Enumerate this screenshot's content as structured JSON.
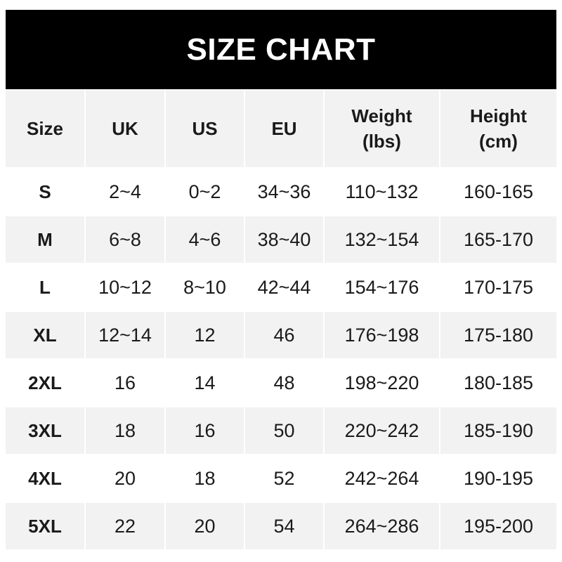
{
  "title": "SIZE CHART",
  "headers": [
    "Size",
    "UK",
    "US",
    "EU",
    "Weight\n(lbs)",
    "Height\n(cm)"
  ],
  "rows": [
    [
      "S",
      "2~4",
      "0~2",
      "34~36",
      "110~132",
      "160-165"
    ],
    [
      "M",
      "6~8",
      "4~6",
      "38~40",
      "132~154",
      "165-170"
    ],
    [
      "L",
      "10~12",
      "8~10",
      "42~44",
      "154~176",
      "170-175"
    ],
    [
      "XL",
      "12~14",
      "12",
      "46",
      "176~198",
      "175-180"
    ],
    [
      "2XL",
      "16",
      "14",
      "48",
      "198~220",
      "180-185"
    ],
    [
      "3XL",
      "18",
      "16",
      "50",
      "220~242",
      "185-190"
    ],
    [
      "4XL",
      "20",
      "18",
      "52",
      "242~264",
      "190-195"
    ],
    [
      "5XL",
      "22",
      "20",
      "54",
      "264~286",
      "195-200"
    ]
  ],
  "colors": {
    "header_bg": "#000000",
    "row_alt": "#f2f2f2"
  }
}
